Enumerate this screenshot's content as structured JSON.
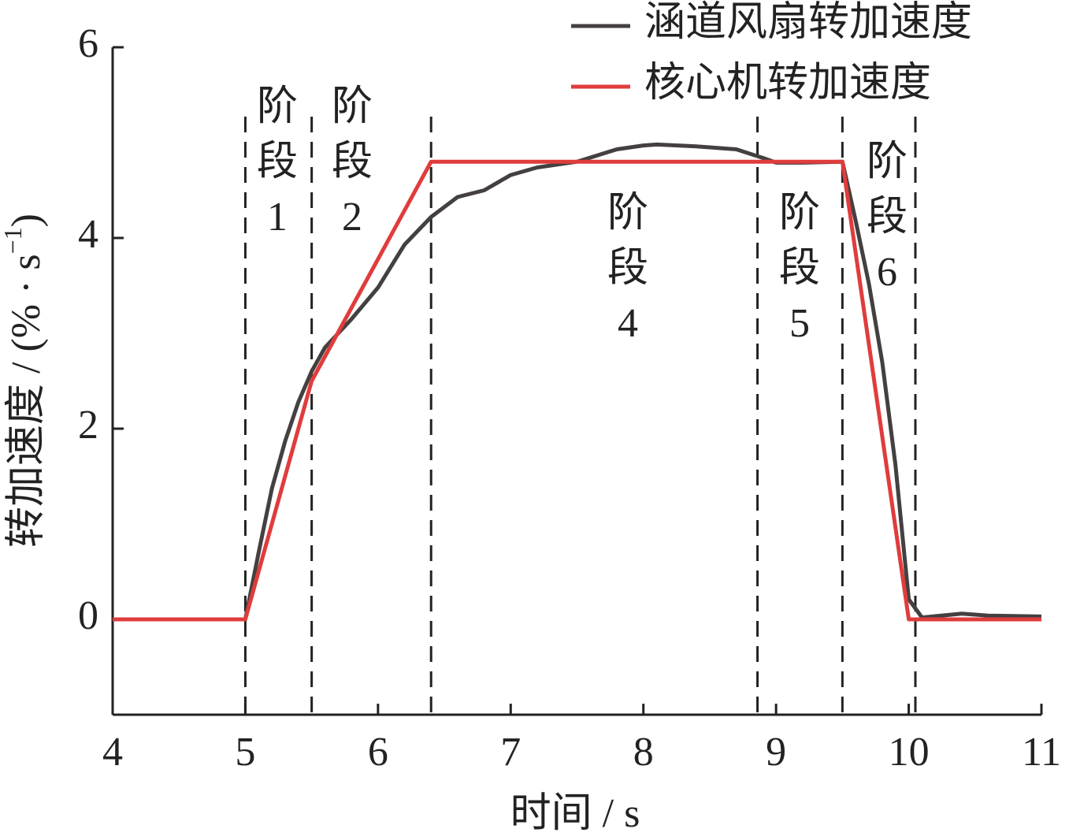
{
  "chart_data": {
    "type": "line",
    "xlabel": "时间 / s",
    "ylabel": [
      "转加速度 / (% · s",
      "−1",
      ")"
    ],
    "xlim": [
      4,
      11
    ],
    "xticks": [
      4,
      5,
      6,
      7,
      8,
      9,
      10,
      11
    ],
    "ylim": [
      -1,
      6
    ],
    "yticks": [
      0,
      2,
      4,
      6
    ],
    "grid": false,
    "legend": "upper right",
    "series": [
      {
        "name": "涵道风扇转加速度",
        "color": "#454040",
        "x": [
          4,
          5,
          5.1,
          5.2,
          5.3,
          5.4,
          5.5,
          5.6,
          5.8,
          6.0,
          6.2,
          6.4,
          6.6,
          6.8,
          7.0,
          7.2,
          7.5,
          7.8,
          8.0,
          8.1,
          8.4,
          8.7,
          8.9,
          9.0,
          9.2,
          9.5,
          9.6,
          9.7,
          9.8,
          9.9,
          10.0,
          10.1,
          10.4,
          10.6,
          11
        ],
        "values": [
          0,
          0,
          0.7,
          1.37,
          1.87,
          2.28,
          2.6,
          2.85,
          3.15,
          3.48,
          3.93,
          4.22,
          4.43,
          4.5,
          4.66,
          4.74,
          4.8,
          4.93,
          4.97,
          4.98,
          4.96,
          4.93,
          4.84,
          4.79,
          4.79,
          4.8,
          4.18,
          3.52,
          2.7,
          1.62,
          0.21,
          0.02,
          0.06,
          0.04,
          0.03
        ]
      },
      {
        "name": "核心机转加速度",
        "color": "#e03c3c",
        "x": [
          4,
          5,
          5.5,
          6.4,
          9.5,
          10,
          11
        ],
        "values": [
          0,
          0,
          2.5,
          4.8,
          4.8,
          0,
          0
        ]
      }
    ],
    "phase_lines": [
      5,
      5.5,
      6.4,
      8.86,
      9.5,
      10.05
    ],
    "annotations": [
      [
        "阶",
        "段",
        "1"
      ],
      [
        "阶",
        "段",
        "2"
      ],
      [
        "阶",
        "段",
        "4"
      ],
      [
        "阶",
        "段",
        "5"
      ],
      [
        "阶",
        "段",
        "6"
      ]
    ]
  }
}
